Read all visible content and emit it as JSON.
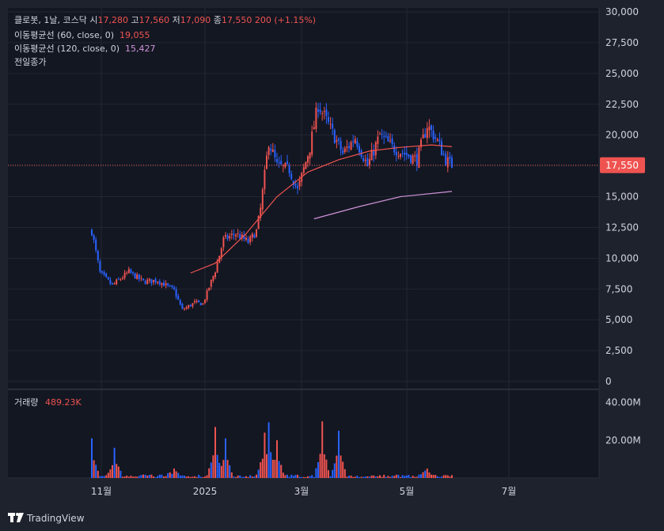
{
  "header": {
    "symbol": "클로봇, 1날, 코스닥",
    "open_label": "시",
    "open_value": "17,280",
    "high_label": "고",
    "high_value": "17,560",
    "low_label": "저",
    "low_value": "17,090",
    "close_label": "종",
    "close_value": "17,550",
    "change": "200 (+1.15%)",
    "ma60_label": "이동평균선 (60, close, 0)",
    "ma60_value": "19,055",
    "ma120_label": "이동평균선 (120, close, 0)",
    "ma120_value": "15,427",
    "prev_close_label": "전일종가"
  },
  "price_axis": {
    "ticks": [
      "30,000",
      "27,500",
      "25,000",
      "22,500",
      "20,000",
      "17,500",
      "15,000",
      "12,500",
      "10,000",
      "7,500",
      "5,000",
      "2,500",
      "0"
    ],
    "current_price_label": "17,550"
  },
  "volume_pane": {
    "label": "거래량",
    "value": "489.23K",
    "ticks": [
      "40.00M",
      "20.00M"
    ]
  },
  "time_axis": {
    "labels": [
      "11월",
      "2025",
      "3월",
      "5월",
      "7월"
    ]
  },
  "brand": {
    "name": "TradingView"
  },
  "colors": {
    "background": "#131722",
    "up": "#ef5350",
    "down": "#2962ff",
    "ma60": "#ef5350",
    "ma120": "#ce93d8",
    "text": "#d1d4dc"
  },
  "chart_data": {
    "type": "candlestick",
    "ylim": [
      0,
      30000
    ],
    "current_price": 17550,
    "x_labels": [
      "11월",
      "2025",
      "3월",
      "5월",
      "7월"
    ],
    "anchors": [
      {
        "x": 0,
        "y": 12200
      },
      {
        "x": 4,
        "y": 8800
      },
      {
        "x": 10,
        "y": 7800
      },
      {
        "x": 18,
        "y": 8900
      },
      {
        "x": 25,
        "y": 8100
      },
      {
        "x": 32,
        "y": 8200
      },
      {
        "x": 40,
        "y": 7400
      },
      {
        "x": 44,
        "y": 5800
      },
      {
        "x": 50,
        "y": 6400
      },
      {
        "x": 54,
        "y": 6300
      },
      {
        "x": 60,
        "y": 9000
      },
      {
        "x": 64,
        "y": 11500
      },
      {
        "x": 70,
        "y": 12000
      },
      {
        "x": 76,
        "y": 11300
      },
      {
        "x": 80,
        "y": 12200
      },
      {
        "x": 82,
        "y": 14000
      },
      {
        "x": 86,
        "y": 19500
      },
      {
        "x": 90,
        "y": 17500
      },
      {
        "x": 96,
        "y": 17200
      },
      {
        "x": 100,
        "y": 15500
      },
      {
        "x": 106,
        "y": 19000
      },
      {
        "x": 110,
        "y": 22500
      },
      {
        "x": 116,
        "y": 20500
      },
      {
        "x": 122,
        "y": 18500
      },
      {
        "x": 128,
        "y": 19800
      },
      {
        "x": 134,
        "y": 17500
      },
      {
        "x": 140,
        "y": 20000
      },
      {
        "x": 146,
        "y": 19000
      },
      {
        "x": 152,
        "y": 18500
      },
      {
        "x": 158,
        "y": 18000
      },
      {
        "x": 163,
        "y": 20800
      },
      {
        "x": 168,
        "y": 19500
      },
      {
        "x": 172,
        "y": 18000
      },
      {
        "x": 175,
        "y": 17550
      }
    ],
    "ma60": [
      {
        "x": 48,
        "y": 8800
      },
      {
        "x": 60,
        "y": 9600
      },
      {
        "x": 75,
        "y": 12000
      },
      {
        "x": 90,
        "y": 15000
      },
      {
        "x": 105,
        "y": 17000
      },
      {
        "x": 120,
        "y": 18000
      },
      {
        "x": 135,
        "y": 18700
      },
      {
        "x": 150,
        "y": 19000
      },
      {
        "x": 165,
        "y": 19200
      },
      {
        "x": 175,
        "y": 19055
      }
    ],
    "ma120": [
      {
        "x": 108,
        "y": 13200
      },
      {
        "x": 130,
        "y": 14200
      },
      {
        "x": 150,
        "y": 15000
      },
      {
        "x": 175,
        "y": 15427
      }
    ],
    "volume_peaks": [
      {
        "x": 0,
        "v": 21.0
      },
      {
        "x": 11,
        "v": 16.0
      },
      {
        "x": 40,
        "v": 5.0
      },
      {
        "x": 60,
        "v": 27.0
      },
      {
        "x": 65,
        "v": 21.0
      },
      {
        "x": 84,
        "v": 24.0
      },
      {
        "x": 86,
        "v": 29.5
      },
      {
        "x": 90,
        "v": 20.0
      },
      {
        "x": 112,
        "v": 30.0
      },
      {
        "x": 120,
        "v": 25.0
      },
      {
        "x": 163,
        "v": 5.0
      }
    ],
    "volume_ylim": [
      0,
      44
    ]
  }
}
